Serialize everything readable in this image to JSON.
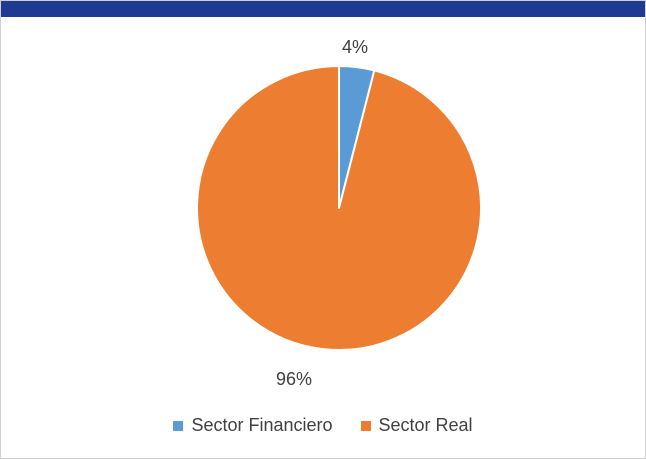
{
  "chart_data": {
    "type": "pie",
    "title": "",
    "categories": [
      "Sector Financiero",
      "Sector Real"
    ],
    "values": [
      4,
      96
    ],
    "labels": [
      "4%",
      "96%"
    ],
    "colors": [
      "#5b9bd5",
      "#ed7d31"
    ],
    "legend_position": "bottom"
  }
}
